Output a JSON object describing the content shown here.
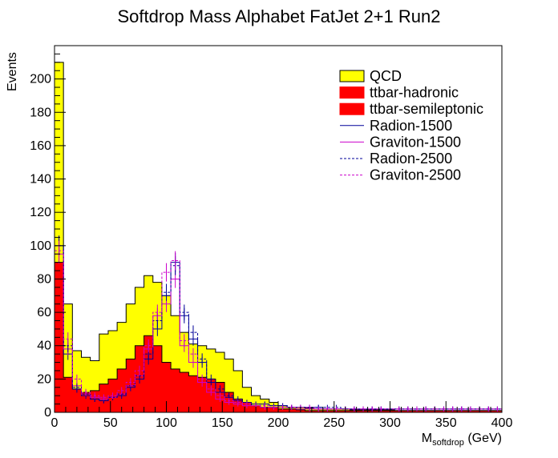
{
  "chart_data": {
    "type": "histogram",
    "title": "Softdrop Mass Alphabet FatJet 2+1 Run2",
    "xlabel_main": "M",
    "xlabel_sub": "softdrop",
    "xlabel_unit": " (GeV)",
    "ylabel": "Events",
    "xlim": [
      0,
      400
    ],
    "ylim": [
      0,
      220
    ],
    "bin_width": 8,
    "xticks": [
      0,
      50,
      100,
      150,
      200,
      250,
      300,
      350,
      400
    ],
    "yticks": [
      0,
      20,
      40,
      60,
      80,
      100,
      120,
      140,
      160,
      180,
      200
    ],
    "grid": false,
    "legend_position": "top-right",
    "series": [
      {
        "name": "QCD",
        "style": "filled-stack",
        "color": "#ffff00",
        "stack_total": [
          210,
          65,
          37,
          33,
          31,
          47,
          49,
          54,
          65,
          75,
          82,
          78,
          70,
          58,
          48,
          41,
          40,
          38,
          36,
          32,
          25,
          15,
          10,
          8,
          6,
          4,
          3,
          3,
          2.5,
          2,
          2,
          2,
          2,
          1.5,
          1.5,
          1.5,
          1.5,
          1.5,
          1,
          1,
          1,
          1,
          1,
          1,
          1,
          1,
          1,
          1,
          1,
          1
        ]
      },
      {
        "name": "ttbar-hadronic",
        "style": "filled",
        "color": "#ff0000"
      },
      {
        "name": "ttbar-semileptonic",
        "style": "filled-stack",
        "color": "#ff0000",
        "stack_total": [
          90,
          21,
          14,
          12,
          13,
          17,
          20,
          26,
          32,
          40,
          46,
          40,
          30,
          26,
          24,
          22,
          21,
          20,
          18,
          12,
          8,
          6,
          4,
          3,
          3,
          2,
          2,
          1.5,
          1,
          1,
          1,
          1,
          1,
          1,
          1,
          1,
          1,
          1,
          1,
          1,
          1,
          1,
          1,
          1,
          1,
          1,
          1,
          1,
          1,
          1
        ]
      },
      {
        "name": "Radion-1500",
        "style": "line-solid",
        "color": "#000099",
        "values": [
          100,
          35,
          14,
          10,
          8,
          7,
          9,
          10,
          15,
          20,
          32,
          50,
          70,
          90,
          58,
          44,
          30,
          18,
          12,
          9,
          7,
          6,
          5,
          5,
          4,
          4,
          3,
          3,
          3,
          3,
          2,
          2,
          2,
          2,
          2,
          2,
          2,
          2,
          2,
          2,
          2,
          2,
          2,
          2,
          2,
          2,
          2,
          2,
          2,
          2
        ]
      },
      {
        "name": "Graviton-1500",
        "style": "line-solid",
        "color": "#cc00cc",
        "values": [
          95,
          38,
          16,
          11,
          9,
          8,
          9,
          11,
          16,
          22,
          38,
          58,
          65,
          80,
          40,
          30,
          18,
          12,
          8,
          6,
          5,
          4,
          4,
          3,
          3,
          3,
          3,
          2,
          2,
          2,
          2,
          2,
          2,
          2,
          2,
          2,
          2,
          2,
          2,
          2,
          2,
          2,
          2,
          2,
          2,
          2,
          2,
          2,
          2,
          2
        ]
      },
      {
        "name": "Radion-2500",
        "style": "line-dashed",
        "color": "#000099",
        "values": [
          100,
          40,
          15,
          11,
          8,
          7,
          9,
          11,
          16,
          22,
          35,
          55,
          72,
          88,
          60,
          48,
          32,
          20,
          14,
          10,
          8,
          6,
          5,
          5,
          4,
          4,
          3,
          3,
          3,
          3,
          3,
          3,
          2,
          2,
          2,
          2,
          2,
          2,
          2,
          2,
          2,
          2,
          2,
          2,
          2,
          2,
          2,
          2,
          2,
          2
        ]
      },
      {
        "name": "Graviton-2500",
        "style": "line-dashed",
        "color": "#cc00cc",
        "values": [
          97,
          44,
          20,
          12,
          10,
          9,
          10,
          13,
          18,
          25,
          40,
          60,
          84,
          91,
          43,
          35,
          20,
          14,
          10,
          7,
          6,
          5,
          4,
          4,
          3,
          3,
          3,
          3,
          3,
          2,
          2,
          2,
          2,
          2,
          2,
          2,
          2,
          2,
          2,
          2,
          2,
          2,
          2,
          2,
          2,
          2,
          2,
          2,
          2,
          2
        ]
      }
    ]
  }
}
